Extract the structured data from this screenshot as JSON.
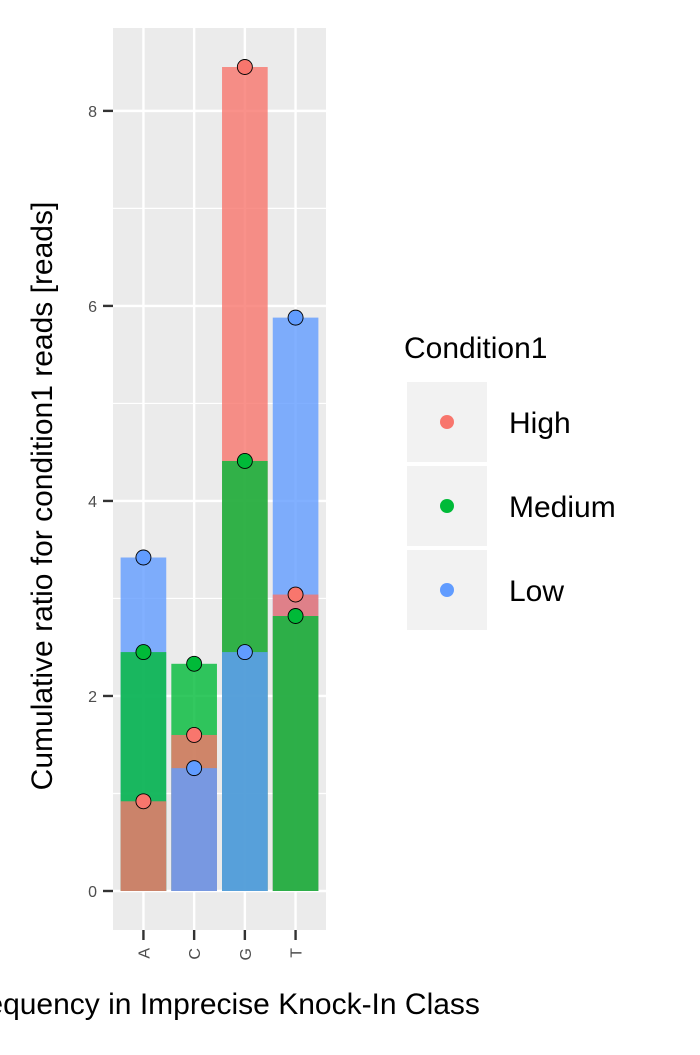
{
  "chart_data": {
    "type": "bar",
    "xlabel": "Frequency in Imprecise Knock-In Class",
    "ylabel": "Cumulative ratio for condition1 reads [reads]",
    "categories": [
      "A",
      "C",
      "G",
      "T"
    ],
    "ylim": [
      -0.4,
      8.85
    ],
    "yticks": [
      0,
      2,
      4,
      6,
      8
    ],
    "legend": {
      "title": "Condition1",
      "placement": "right"
    },
    "series": [
      {
        "name": "High",
        "color": "#F8766D",
        "values": [
          0.92,
          1.6,
          8.45,
          3.04
        ]
      },
      {
        "name": "Medium",
        "color": "#00BA38",
        "values": [
          2.45,
          2.33,
          4.41,
          2.82
        ]
      },
      {
        "name": "Low",
        "color": "#619CFF",
        "values": [
          3.42,
          1.26,
          2.45,
          5.88
        ]
      }
    ],
    "grid": true
  }
}
